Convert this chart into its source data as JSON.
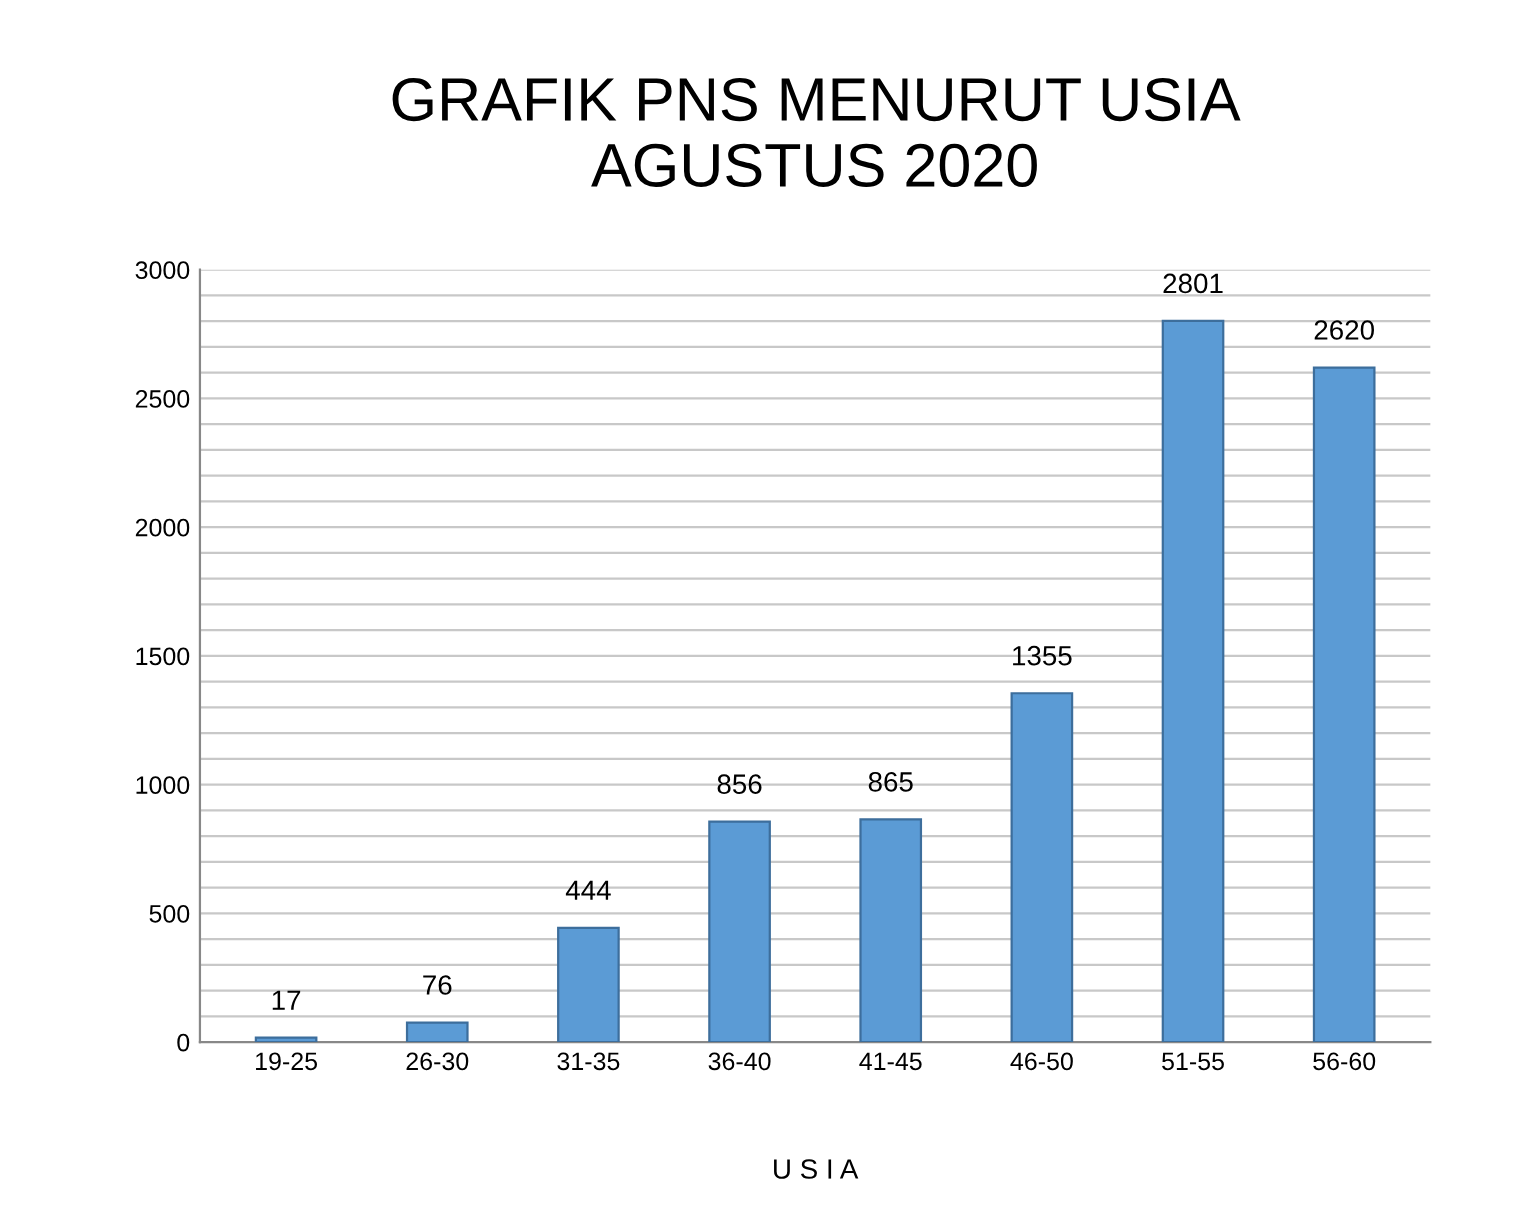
{
  "chart_data": {
    "type": "bar",
    "title": "GRAFIK PNS MENURUT USIA\nAGUSTUS 2020",
    "xlabel": "U S I A",
    "categories": [
      "19-25",
      "26-30",
      "31-35",
      "36-40",
      "41-45",
      "46-50",
      "51-55",
      "56-60"
    ],
    "values": [
      17,
      76,
      444,
      856,
      865,
      1355,
      2801,
      2620
    ],
    "color": "#5b9bd5",
    "ylim": [
      0,
      3000
    ],
    "yticks": [
      0,
      {
        "value": 100,
        "label": null
      },
      {
        "value": 200,
        "label": null
      },
      {
        "value": 300,
        "label": null
      },
      {
        "value": 400,
        "label": null
      },
      500,
      {
        "value": 600,
        "label": null
      },
      {
        "value": 700,
        "label": null
      },
      {
        "value": 800,
        "label": null
      },
      {
        "value": 900,
        "label": null
      },
      1000,
      {
        "value": 1100,
        "label": null
      },
      {
        "value": 1200,
        "label": null
      },
      {
        "value": 1300,
        "label": null
      },
      {
        "value": 1400,
        "label": null
      },
      1500,
      {
        "value": 1600,
        "label": null
      },
      {
        "value": 1700,
        "label": null
      },
      {
        "value": 1800,
        "label": null
      },
      {
        "value": 1900,
        "label": null
      },
      2000,
      {
        "value": 2100,
        "label": null
      },
      {
        "value": 2200,
        "label": null
      },
      {
        "value": 2300,
        "label": null
      },
      {
        "value": 2400,
        "label": null
      },
      2500,
      {
        "value": 2600,
        "label": null
      },
      {
        "value": 2700,
        "label": null
      },
      {
        "value": 2800,
        "label": null
      },
      {
        "value": 2900,
        "label": null
      },
      3000
    ],
    "grid": "y",
    "data_labels": true,
    "legend": false
  }
}
